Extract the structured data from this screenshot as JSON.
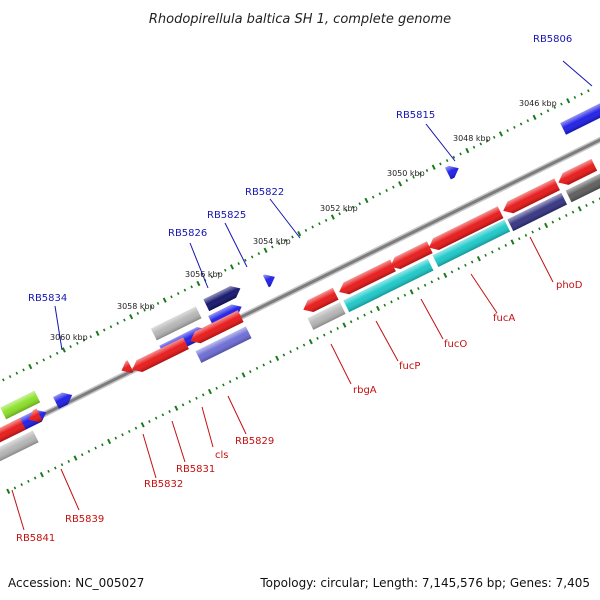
{
  "title": "Rhodopirellula baltica SH 1, complete genome",
  "footer": {
    "accession": "Accession: NC_005027",
    "summary": "Topology: circular; Length: 7,145,576 bp; Genes: 7,405"
  },
  "colors": {
    "backbone": "#8a8a8a",
    "tick": "#1a7a1a",
    "forward_label": "#1515b0",
    "reverse_label": "#c41010",
    "leader": "#c41010",
    "leader_forward": "#1515b0"
  },
  "ticks": [
    "3046 kbp",
    "3048 kbp",
    "3050 kbp",
    "3052 kbp",
    "3054 kbp",
    "3056 kbp",
    "3058 kbp",
    "3060 kbp"
  ],
  "forward_labels": [
    "RB5806",
    "RB5815",
    "RB5822",
    "RB5825",
    "RB5826",
    "RB5834"
  ],
  "reverse_labels": [
    "phoD",
    "fucA",
    "fucO",
    "fucP",
    "rbgA",
    "RB5829",
    "cls",
    "RB5831",
    "RB5832",
    "RB5839",
    "RB5841"
  ]
}
